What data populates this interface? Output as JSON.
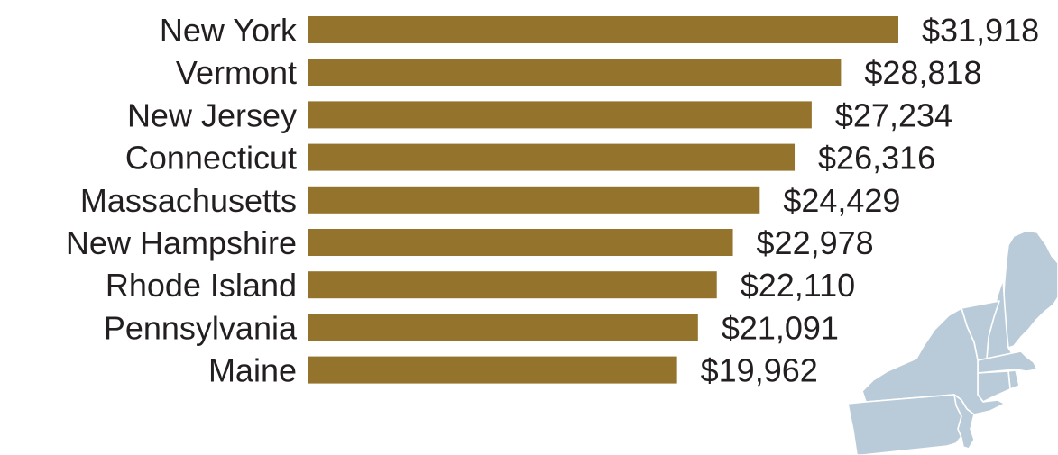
{
  "chart_data": {
    "type": "bar",
    "orientation": "horizontal",
    "categories": [
      "New York",
      "Vermont",
      "New Jersey",
      "Connecticut",
      "Massachusetts",
      "New Hampshire",
      "Rhode Island",
      "Pennsylvania",
      "Maine"
    ],
    "values": [
      31918,
      28818,
      27234,
      26316,
      24429,
      22978,
      22110,
      21091,
      19962
    ],
    "value_labels": [
      "$31,918",
      "$28,818",
      "$27,234",
      "$26,316",
      "$24,429",
      "$22,978",
      "$22,110",
      "$21,091",
      "$19,962"
    ],
    "xlim": [
      0,
      31918
    ],
    "grid": false,
    "legend": "none",
    "bar_color": "#94732d",
    "text_color": "#231f20"
  },
  "decoration": {
    "map_icon": "northeast-us-map-icon",
    "map_color": "#b9cbd8"
  }
}
